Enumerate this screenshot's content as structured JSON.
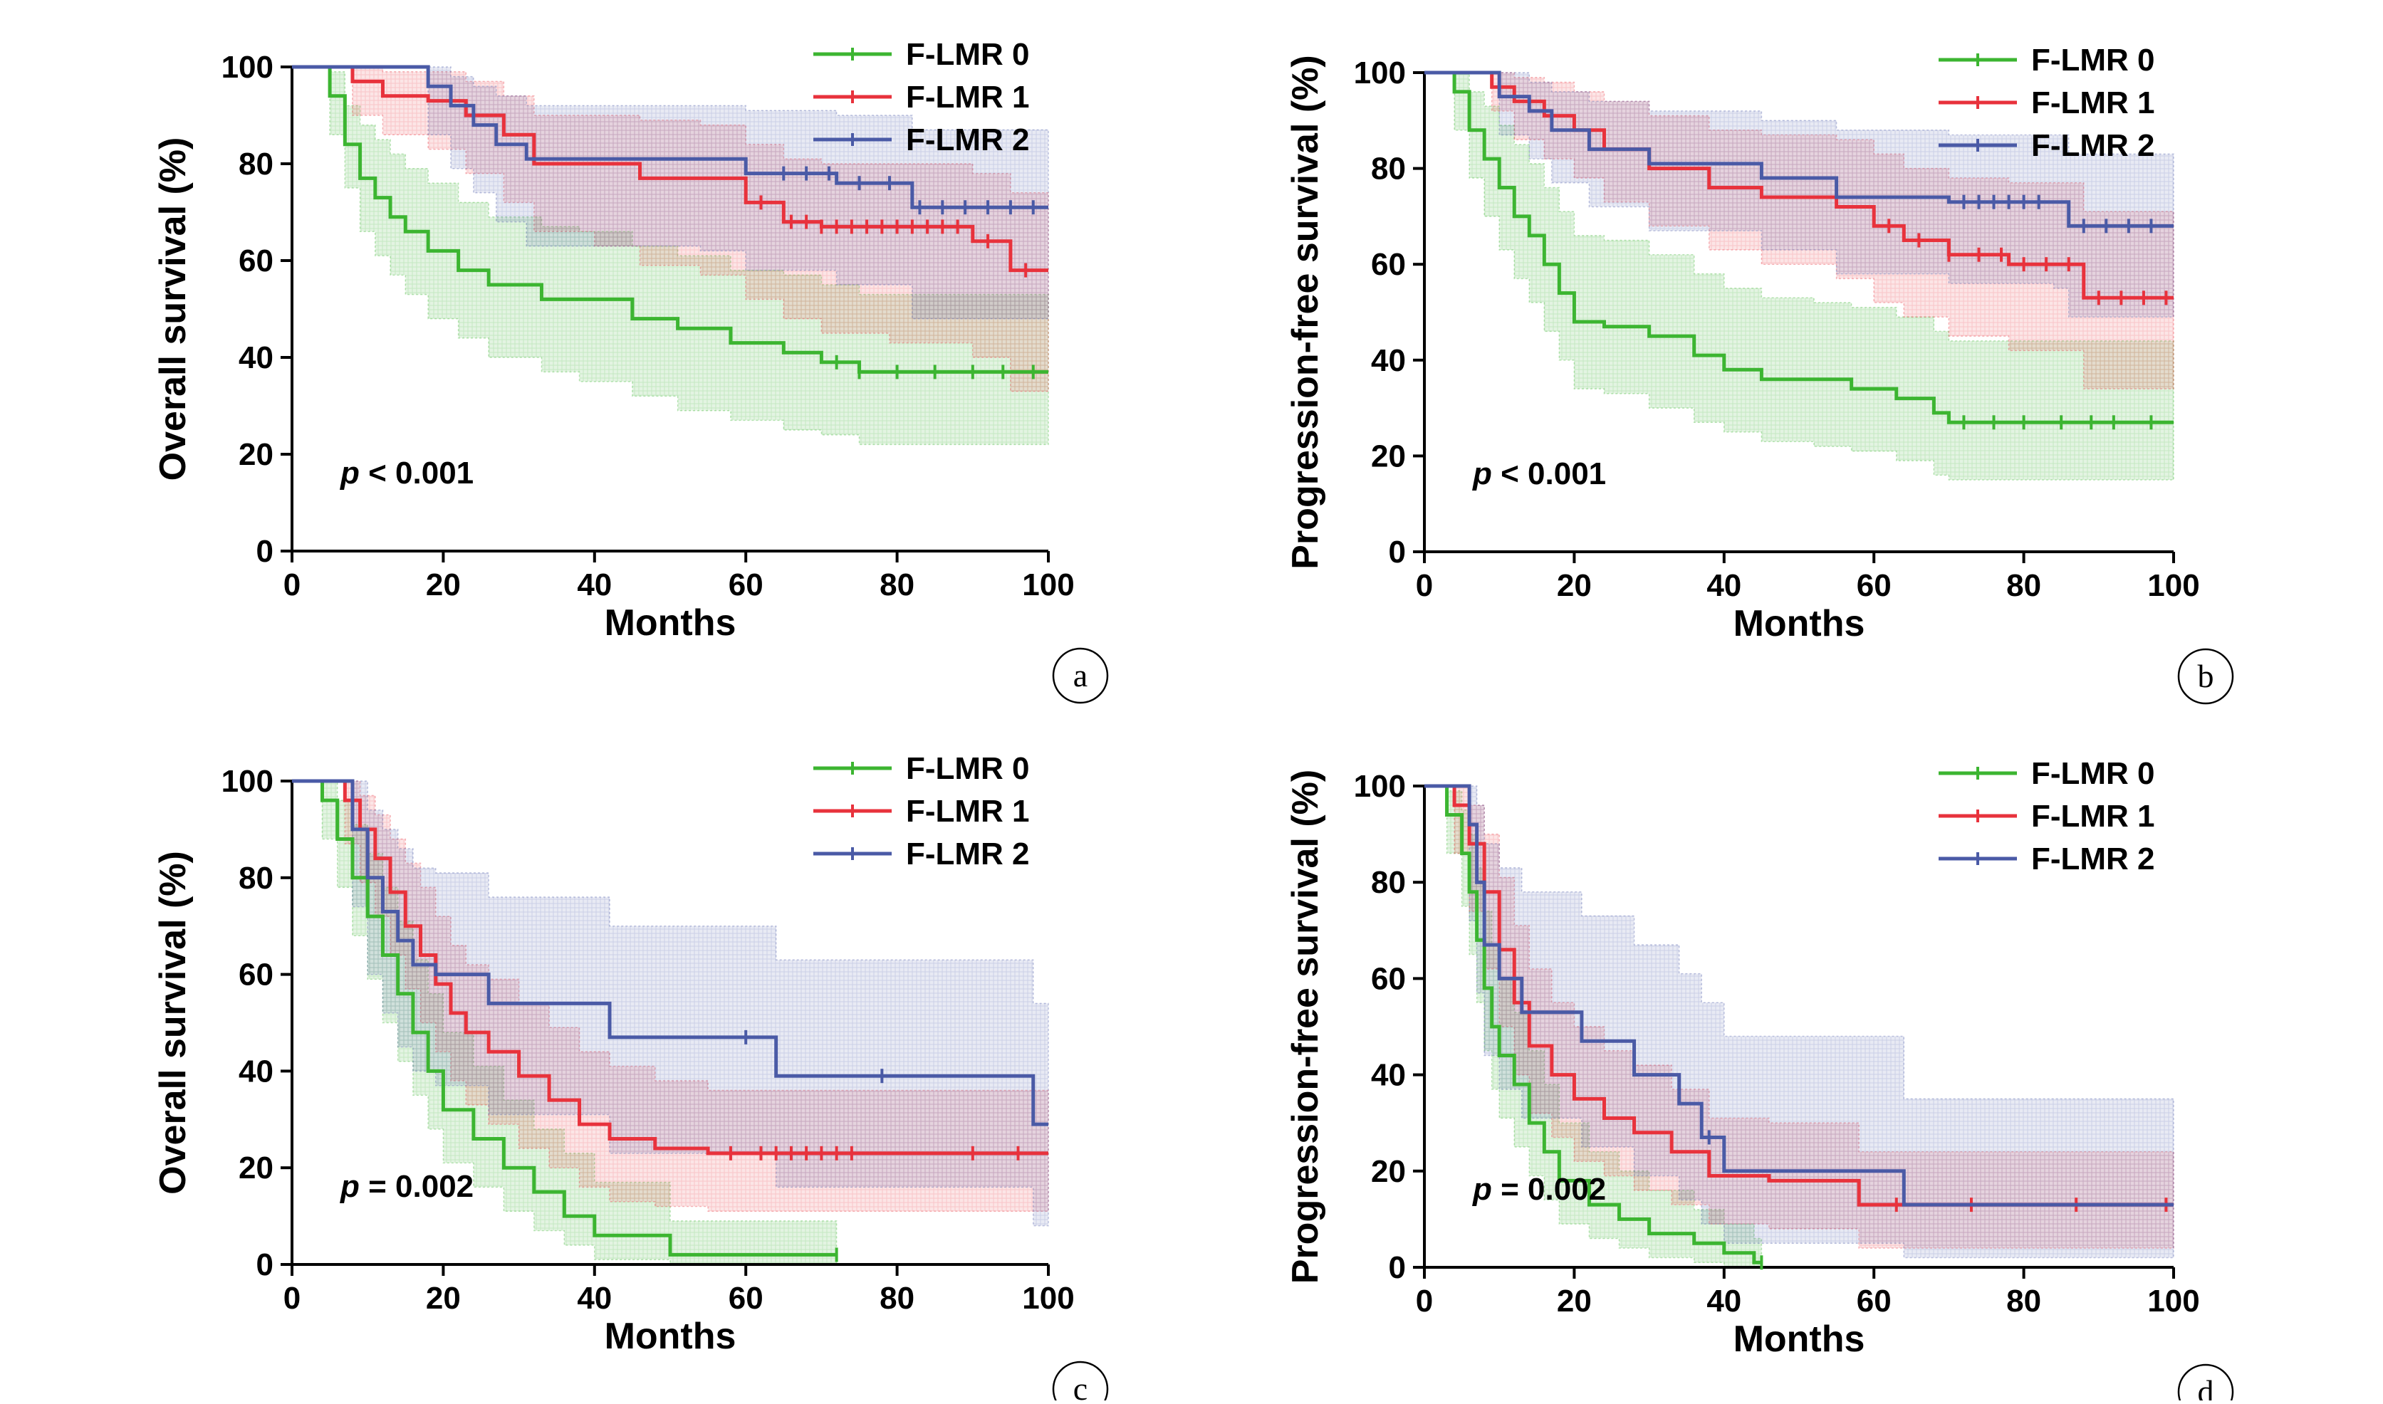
{
  "colors": {
    "F-LMR 0": "#3cb531",
    "F-LMR 1": "#e8323c",
    "F-LMR 2": "#4a5aa6"
  },
  "chart_data": [
    {
      "id": "a",
      "type": "line",
      "panel_label": "a",
      "xlabel": "Months",
      "ylabel": "Overall survival (%)",
      "xlim": [
        0,
        100
      ],
      "ylim": [
        0,
        100
      ],
      "xticks": [
        "0",
        "20",
        "40",
        "60",
        "80",
        "100"
      ],
      "yticks": [
        "0",
        "20",
        "40",
        "60",
        "80",
        "100"
      ],
      "annotation": {
        "italic": "p",
        "text": " < 0.001"
      },
      "legend_position": "top-right",
      "series": [
        {
          "name": "F-LMR 0",
          "color": "#3cb531",
          "x": [
            0,
            5,
            7,
            9,
            11,
            13,
            15,
            18,
            22,
            26,
            33,
            38,
            45,
            51,
            58,
            65,
            70,
            75,
            100
          ],
          "y": [
            100,
            94,
            84,
            77,
            73,
            69,
            66,
            62,
            58,
            55,
            52,
            52,
            48,
            46,
            43,
            41,
            39,
            37,
            37
          ],
          "lower": [
            100,
            86,
            75,
            66,
            61,
            57,
            53,
            48,
            44,
            40,
            37,
            35,
            32,
            29,
            27,
            25,
            24,
            22,
            22
          ],
          "upper": [
            100,
            99,
            92,
            88,
            85,
            82,
            79,
            76,
            72,
            69,
            67,
            66,
            63,
            61,
            58,
            57,
            55,
            53,
            53
          ],
          "censor_x": [
            72,
            75,
            80,
            85,
            90,
            94,
            98
          ]
        },
        {
          "name": "F-LMR 1",
          "color": "#e8323c",
          "x": [
            0,
            5,
            8,
            12,
            18,
            23,
            28,
            32,
            40,
            46,
            54,
            60,
            65,
            70,
            79,
            90,
            95,
            100
          ],
          "y": [
            100,
            100,
            97,
            94,
            93,
            90,
            86,
            80,
            80,
            77,
            77,
            72,
            68,
            67,
            67,
            64,
            58,
            58
          ],
          "lower": [
            100,
            100,
            90,
            86,
            83,
            78,
            72,
            66,
            63,
            59,
            57,
            52,
            48,
            45,
            43,
            40,
            33,
            33
          ],
          "upper": [
            100,
            100,
            100,
            99,
            99,
            97,
            94,
            90,
            90,
            89,
            88,
            84,
            81,
            80,
            80,
            78,
            74,
            74
          ],
          "censor_x": [
            62,
            66,
            68,
            70,
            72,
            74,
            76,
            78,
            80,
            82,
            84,
            86,
            88,
            92,
            97
          ]
        },
        {
          "name": "F-LMR 2",
          "color": "#4a5aa6",
          "x": [
            0,
            16,
            18,
            21,
            24,
            27,
            31,
            54,
            60,
            72,
            82,
            100
          ],
          "y": [
            100,
            100,
            96,
            92,
            88,
            84,
            81,
            81,
            78,
            76,
            71,
            71
          ],
          "lower": [
            100,
            100,
            86,
            79,
            74,
            68,
            63,
            62,
            58,
            55,
            48,
            48
          ],
          "upper": [
            100,
            100,
            100,
            98,
            96,
            94,
            92,
            92,
            91,
            90,
            87,
            87
          ],
          "censor_x": [
            65,
            68,
            71,
            75,
            79,
            83,
            86,
            89,
            92,
            95,
            98
          ]
        }
      ]
    },
    {
      "id": "b",
      "type": "line",
      "panel_label": "b",
      "xlabel": "Months",
      "ylabel": "Progression-free survival (%)",
      "xlim": [
        0,
        100
      ],
      "ylim": [
        0,
        100
      ],
      "xticks": [
        "0",
        "20",
        "40",
        "60",
        "80",
        "100"
      ],
      "yticks": [
        "0",
        "20",
        "40",
        "60",
        "80",
        "100"
      ],
      "annotation": {
        "italic": "p",
        "text": " < 0.001"
      },
      "legend_position": "top-right",
      "series": [
        {
          "name": "F-LMR 0",
          "color": "#3cb531",
          "x": [
            0,
            4,
            6,
            8,
            10,
            12,
            14,
            16,
            18,
            20,
            24,
            30,
            36,
            40,
            45,
            52,
            57,
            63,
            68,
            70,
            100
          ],
          "y": [
            100,
            96,
            88,
            82,
            76,
            70,
            66,
            60,
            54,
            48,
            47,
            45,
            41,
            38,
            36,
            36,
            34,
            32,
            29,
            27,
            27
          ],
          "lower": [
            100,
            88,
            78,
            70,
            63,
            57,
            52,
            46,
            40,
            34,
            33,
            30,
            27,
            25,
            23,
            22,
            21,
            19,
            16,
            15,
            15
          ],
          "upper": [
            100,
            100,
            96,
            93,
            89,
            85,
            81,
            76,
            71,
            66,
            65,
            62,
            58,
            55,
            53,
            52,
            51,
            49,
            46,
            44,
            44
          ],
          "censor_x": [
            72,
            76,
            80,
            85,
            89,
            92,
            97
          ]
        },
        {
          "name": "F-LMR 1",
          "color": "#e8323c",
          "x": [
            0,
            6,
            9,
            12,
            16,
            20,
            24,
            30,
            38,
            45,
            55,
            60,
            64,
            70,
            78,
            88,
            100
          ],
          "y": [
            100,
            100,
            97,
            94,
            91,
            88,
            84,
            80,
            76,
            74,
            72,
            68,
            65,
            62,
            60,
            53,
            53
          ],
          "lower": [
            100,
            100,
            92,
            86,
            82,
            78,
            73,
            68,
            63,
            60,
            57,
            52,
            49,
            45,
            42,
            34,
            34
          ],
          "upper": [
            100,
            100,
            100,
            99,
            98,
            96,
            94,
            91,
            88,
            87,
            86,
            83,
            80,
            78,
            77,
            71,
            71
          ],
          "censor_x": [
            62,
            66,
            70,
            74,
            77,
            80,
            83,
            86,
            90,
            93,
            96,
            99
          ]
        },
        {
          "name": "F-LMR 2",
          "color": "#4a5aa6",
          "x": [
            0,
            5,
            10,
            14,
            17,
            22,
            30,
            45,
            55,
            70,
            84,
            86,
            100
          ],
          "y": [
            100,
            100,
            95,
            92,
            88,
            84,
            81,
            78,
            74,
            73,
            73,
            68,
            68
          ],
          "lower": [
            100,
            100,
            87,
            82,
            77,
            72,
            67,
            63,
            58,
            56,
            55,
            49,
            49
          ],
          "upper": [
            100,
            100,
            100,
            98,
            96,
            94,
            92,
            90,
            88,
            87,
            87,
            83,
            83
          ],
          "censor_x": [
            72,
            74,
            76,
            78,
            80,
            82,
            88,
            91,
            94,
            97
          ]
        }
      ]
    },
    {
      "id": "c",
      "type": "line",
      "panel_label": "c",
      "xlabel": "Months",
      "ylabel": "Overall survival (%)",
      "xlim": [
        0,
        100
      ],
      "ylim": [
        0,
        100
      ],
      "xticks": [
        "0",
        "20",
        "40",
        "60",
        "80",
        "100"
      ],
      "yticks": [
        "0",
        "20",
        "40",
        "60",
        "80",
        "100"
      ],
      "annotation": {
        "italic": "p",
        "text": " = 0.002"
      },
      "legend_position": "top-right",
      "series": [
        {
          "name": "F-LMR 0",
          "color": "#3cb531",
          "x": [
            0,
            4,
            6,
            8,
            10,
            12,
            14,
            16,
            18,
            20,
            24,
            28,
            32,
            36,
            40,
            46,
            50,
            72
          ],
          "y": [
            100,
            96,
            88,
            80,
            72,
            64,
            56,
            48,
            40,
            32,
            26,
            20,
            15,
            10,
            6,
            6,
            2,
            2
          ],
          "lower": [
            100,
            88,
            78,
            68,
            59,
            50,
            42,
            35,
            28,
            21,
            16,
            11,
            7,
            4,
            1,
            1,
            0,
            0
          ],
          "upper": [
            100,
            100,
            96,
            91,
            85,
            78,
            71,
            63,
            56,
            48,
            41,
            34,
            28,
            23,
            17,
            17,
            9,
            9
          ],
          "censor_x": [
            72
          ]
        },
        {
          "name": "F-LMR 1",
          "color": "#e8323c",
          "x": [
            0,
            7,
            9,
            11,
            13,
            15,
            17,
            19,
            21,
            23,
            26,
            30,
            34,
            38,
            42,
            48,
            55,
            62,
            100
          ],
          "y": [
            100,
            96,
            90,
            84,
            77,
            70,
            64,
            58,
            52,
            48,
            44,
            39,
            34,
            29,
            26,
            24,
            23,
            23,
            23
          ],
          "lower": [
            100,
            87,
            79,
            72,
            64,
            57,
            50,
            44,
            38,
            33,
            29,
            24,
            20,
            16,
            13,
            12,
            11,
            11,
            11
          ],
          "upper": [
            100,
            100,
            97,
            93,
            88,
            83,
            78,
            72,
            66,
            62,
            59,
            54,
            49,
            44,
            41,
            38,
            36,
            36,
            36
          ],
          "censor_x": [
            58,
            62,
            64,
            66,
            68,
            70,
            72,
            74,
            90,
            96
          ]
        },
        {
          "name": "F-LMR 2",
          "color": "#4a5aa6",
          "x": [
            0,
            8,
            10,
            12,
            14,
            16,
            19,
            26,
            42,
            64,
            98,
            100
          ],
          "y": [
            100,
            90,
            80,
            73,
            67,
            62,
            60,
            54,
            47,
            39,
            29,
            29
          ],
          "lower": [
            100,
            74,
            60,
            52,
            45,
            40,
            37,
            31,
            23,
            16,
            8,
            8
          ],
          "upper": [
            100,
            100,
            94,
            90,
            86,
            82,
            81,
            76,
            70,
            63,
            54,
            54
          ],
          "censor_x": [
            60,
            78
          ]
        }
      ]
    },
    {
      "id": "d",
      "type": "line",
      "panel_label": "d",
      "xlabel": "Months",
      "ylabel": "Progression-free survival (%)",
      "xlim": [
        0,
        100
      ],
      "ylim": [
        0,
        100
      ],
      "xticks": [
        "0",
        "20",
        "40",
        "60",
        "80",
        "100"
      ],
      "yticks": [
        "0",
        "20",
        "40",
        "60",
        "80",
        "100"
      ],
      "annotation": {
        "italic": "p",
        "text": " = 0.002"
      },
      "legend_position": "top-right",
      "series": [
        {
          "name": "F-LMR 0",
          "color": "#3cb531",
          "x": [
            0,
            3,
            5,
            6,
            7,
            8,
            9,
            10,
            12,
            14,
            16,
            18,
            22,
            26,
            30,
            36,
            40,
            44,
            45
          ],
          "y": [
            100,
            94,
            86,
            78,
            68,
            58,
            50,
            44,
            38,
            30,
            24,
            18,
            13,
            10,
            7,
            5,
            3,
            1,
            1
          ],
          "lower": [
            100,
            86,
            75,
            65,
            55,
            45,
            37,
            31,
            25,
            19,
            14,
            9,
            6,
            4,
            2,
            1,
            0,
            0,
            0
          ],
          "upper": [
            100,
            99,
            95,
            90,
            83,
            74,
            67,
            60,
            53,
            45,
            38,
            30,
            24,
            20,
            16,
            12,
            9,
            6,
            6
          ],
          "censor_x": [
            45
          ]
        },
        {
          "name": "F-LMR 1",
          "color": "#e8323c",
          "x": [
            0,
            4,
            6,
            8,
            10,
            12,
            14,
            17,
            20,
            24,
            28,
            33,
            38,
            46,
            58,
            100
          ],
          "y": [
            100,
            96,
            88,
            78,
            66,
            55,
            46,
            40,
            35,
            31,
            28,
            24,
            19,
            18,
            13,
            13
          ],
          "lower": [
            100,
            86,
            74,
            62,
            50,
            40,
            32,
            27,
            22,
            19,
            16,
            13,
            9,
            8,
            4,
            4
          ],
          "upper": [
            100,
            100,
            96,
            90,
            81,
            71,
            62,
            55,
            50,
            45,
            42,
            37,
            31,
            30,
            24,
            24
          ],
          "censor_x": [
            63,
            73,
            87,
            99
          ]
        },
        {
          "name": "F-LMR 2",
          "color": "#4a5aa6",
          "x": [
            0,
            6,
            7,
            8,
            10,
            13,
            21,
            28,
            34,
            37,
            40,
            64,
            100
          ],
          "y": [
            100,
            92,
            80,
            67,
            60,
            53,
            47,
            40,
            34,
            27,
            20,
            13,
            13
          ],
          "lower": [
            100,
            72,
            57,
            44,
            37,
            31,
            25,
            19,
            14,
            9,
            5,
            2,
            2
          ],
          "upper": [
            100,
            100,
            96,
            88,
            83,
            78,
            73,
            67,
            61,
            55,
            48,
            35,
            35
          ],
          "censor_x": [
            38
          ]
        }
      ]
    }
  ]
}
